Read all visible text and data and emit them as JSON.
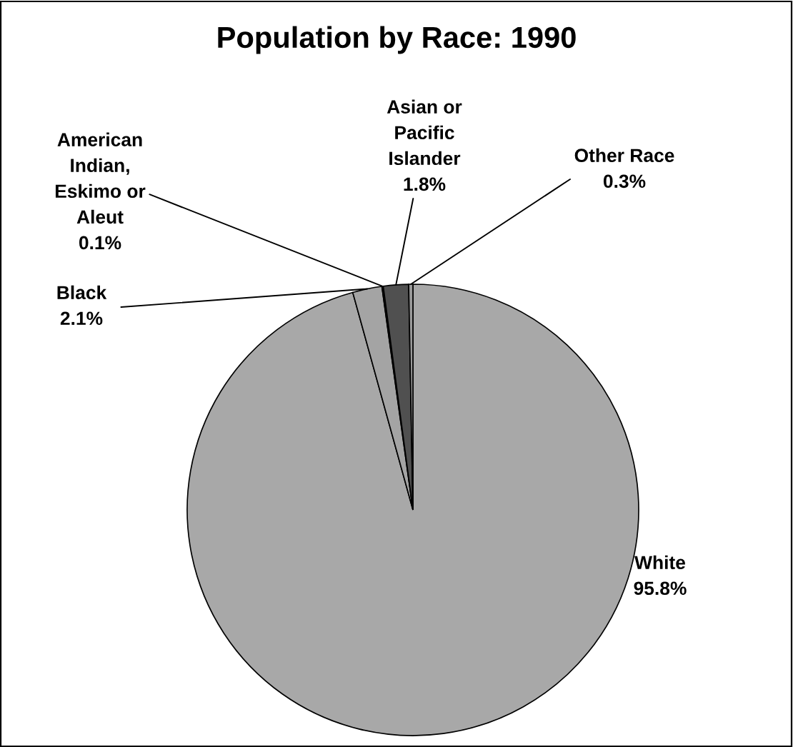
{
  "chart_data": {
    "type": "pie",
    "title": "Population by Race: 1990",
    "categories": [
      "White",
      "Black",
      "American\nIndian,\nEskimo or\nAleut",
      "Asian or\nPacific\nIslander",
      "Other Race"
    ],
    "values": [
      95.8,
      2.1,
      0.1,
      1.8,
      0.3
    ],
    "colors": [
      "#a8a8a8",
      "#a4a4a4",
      "#222222",
      "#505050",
      "#9a9a9a"
    ],
    "value_labels": [
      "95.8%",
      "2.1%",
      "0.1%",
      "1.8%",
      "0.3%"
    ],
    "legend": false
  }
}
